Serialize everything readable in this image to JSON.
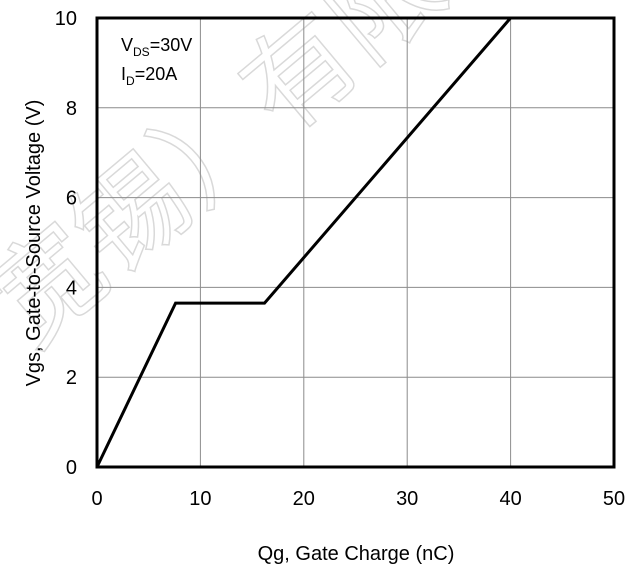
{
  "watermark": "宽锡）有限公司",
  "chart_data": {
    "type": "line",
    "title": "",
    "xlabel": "Qg, Gate Charge (nC)",
    "ylabel": "Vgs, Gate-to-Source Voltage (V)",
    "xlim": [
      0,
      50
    ],
    "ylim": [
      0,
      10
    ],
    "xticks": [
      "0",
      "10",
      "20",
      "30",
      "40",
      "50"
    ],
    "yticks": [
      "0",
      "2",
      "4",
      "6",
      "8",
      "10"
    ],
    "grid": true,
    "legend": "none",
    "series": [
      {
        "x": [
          0,
          7.6,
          16.2,
          40
        ],
        "y": [
          0,
          3.65,
          3.65,
          10
        ]
      }
    ],
    "annotations": {
      "vds": {
        "main": "V",
        "sub": "DS",
        "value": "=30V"
      },
      "id": {
        "main": "I",
        "sub": "D",
        "value": "=20A"
      }
    }
  }
}
